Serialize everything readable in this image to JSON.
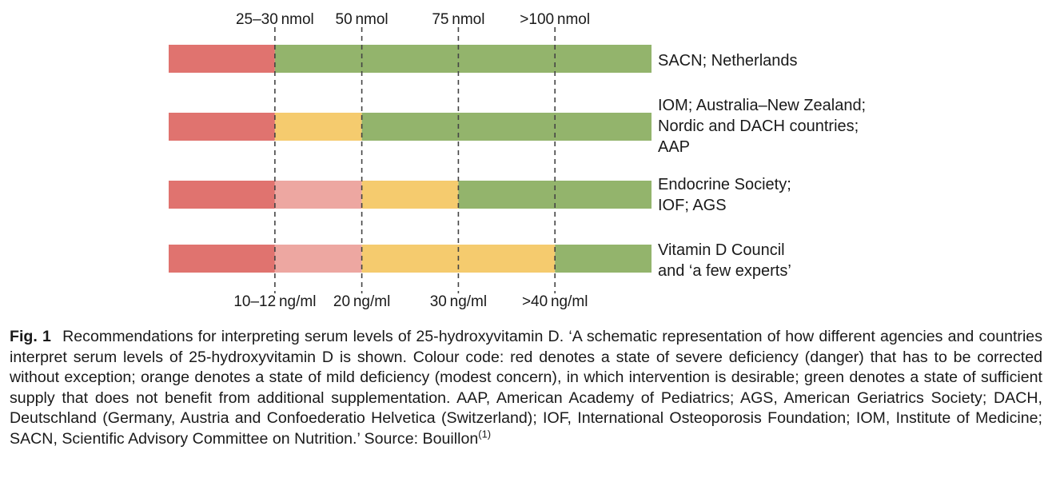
{
  "chart_data": {
    "type": "bar",
    "orientation": "horizontal-segmented",
    "top_axis_ticks": [
      "25–30 nmol",
      "50 nmol",
      "75 nmol",
      ">100 nmol"
    ],
    "bottom_axis_ticks": [
      "10–12 ng/ml",
      "20 ng/ml",
      "30 ng/ml",
      ">40 ng/ml"
    ],
    "threshold_values_nmol": [
      27.5,
      50,
      75,
      100
    ],
    "scale_range_nmol": [
      0,
      125
    ],
    "status_colors": {
      "severe_deficiency": "#E0736F",
      "deficiency_light": "#EDA7A1",
      "mild_deficiency": "#F5CB6E",
      "sufficient": "#93B46C"
    },
    "rows": [
      {
        "label_lines": [
          "SACN; Netherlands"
        ],
        "segments": [
          {
            "from": 0,
            "to": 27.5,
            "status": "severe_deficiency"
          },
          {
            "from": 27.5,
            "to": 125,
            "status": "sufficient"
          }
        ]
      },
      {
        "label_lines": [
          "IOM; Australia–New Zealand;",
          "Nordic and DACH countries;",
          "AAP"
        ],
        "segments": [
          {
            "from": 0,
            "to": 27.5,
            "status": "severe_deficiency"
          },
          {
            "from": 27.5,
            "to": 50,
            "status": "mild_deficiency"
          },
          {
            "from": 50,
            "to": 125,
            "status": "sufficient"
          }
        ]
      },
      {
        "label_lines": [
          "Endocrine Society;",
          "IOF; AGS"
        ],
        "segments": [
          {
            "from": 0,
            "to": 27.5,
            "status": "severe_deficiency"
          },
          {
            "from": 27.5,
            "to": 50,
            "status": "deficiency_light"
          },
          {
            "from": 50,
            "to": 75,
            "status": "mild_deficiency"
          },
          {
            "from": 75,
            "to": 125,
            "status": "sufficient"
          }
        ]
      },
      {
        "label_lines": [
          "Vitamin D Council",
          "and ‘a few experts’"
        ],
        "segments": [
          {
            "from": 0,
            "to": 27.5,
            "status": "severe_deficiency"
          },
          {
            "from": 27.5,
            "to": 50,
            "status": "deficiency_light"
          },
          {
            "from": 50,
            "to": 100,
            "status": "mild_deficiency"
          },
          {
            "from": 100,
            "to": 125,
            "status": "sufficient"
          }
        ]
      }
    ]
  },
  "caption": {
    "label": "Fig. 1",
    "text": "Recommendations for interpreting serum levels of 25-hydroxyvitamin D. ‘A schematic representation of how different agencies and countries interpret serum levels of 25-hydroxyvitamin D is shown. Colour code: red denotes a state of severe deficiency (danger) that has to be corrected without exception; orange denotes a state of mild deficiency (modest concern), in which intervention is desirable; green denotes a state of sufficient supply that does not benefit from additional supplementation. AAP, American Academy of Pediatrics; AGS, American Geriatrics Society; DACH, Deutschland (Germany, Austria and Confoederatio Helvetica (Switzerland); IOF, International Osteoporosis Foundation; IOM, Institute of Medicine; SACN, Scientific Advisory Committee on Nutrition.’ Source: Bouillon",
    "citation": "(1)"
  }
}
